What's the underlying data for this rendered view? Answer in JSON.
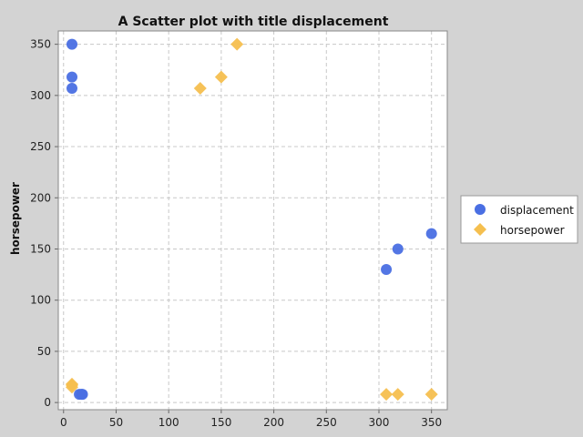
{
  "chart_data": {
    "type": "scatter",
    "title": "A Scatter plot with title displacement",
    "xlabel": "",
    "ylabel": "horsepower",
    "xlim": [
      -5,
      365
    ],
    "ylim": [
      -7,
      363
    ],
    "xticks": [
      0,
      50,
      100,
      150,
      200,
      250,
      300,
      350
    ],
    "yticks": [
      0,
      50,
      100,
      150,
      200,
      250,
      300,
      350
    ],
    "grid": true,
    "legend_position": "right",
    "series": [
      {
        "name": "displacement",
        "color": "#4a6fe3",
        "marker": "circle",
        "points": [
          {
            "x": 8,
            "y": 350
          },
          {
            "x": 8,
            "y": 318
          },
          {
            "x": 8,
            "y": 307
          },
          {
            "x": 15,
            "y": 8
          },
          {
            "x": 17,
            "y": 8
          },
          {
            "x": 18,
            "y": 8
          },
          {
            "x": 307,
            "y": 130
          },
          {
            "x": 318,
            "y": 150
          },
          {
            "x": 350,
            "y": 165
          }
        ]
      },
      {
        "name": "horsepower",
        "color": "#f5bf4f",
        "marker": "diamond",
        "points": [
          {
            "x": 130,
            "y": 307
          },
          {
            "x": 150,
            "y": 318
          },
          {
            "x": 165,
            "y": 350
          },
          {
            "x": 8,
            "y": 18
          },
          {
            "x": 8,
            "y": 17
          },
          {
            "x": 8,
            "y": 15
          },
          {
            "x": 307,
            "y": 8
          },
          {
            "x": 318,
            "y": 8
          },
          {
            "x": 350,
            "y": 8
          }
        ]
      }
    ]
  }
}
